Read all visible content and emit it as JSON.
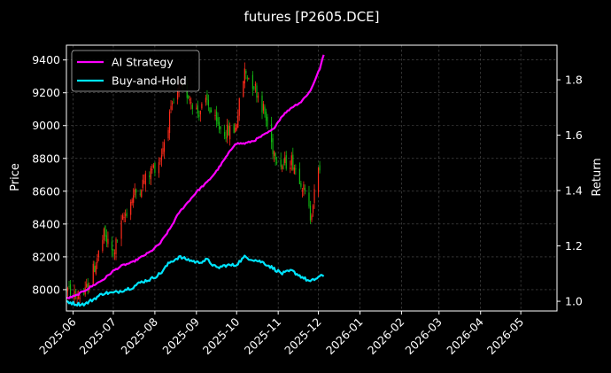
{
  "chart_data": {
    "type": "line",
    "title": "futures [P2605.DCE]",
    "ylabel_left": "Price",
    "ylabel_right": "Return",
    "grid": true,
    "legend_placement": "top-left",
    "colors": {
      "background": "#000000",
      "ai_strategy": "#ff00ff",
      "buy_and_hold": "#00e5ff",
      "candle_up": "#ff2a1a",
      "candle_down": "#11b811",
      "grid": "#555555"
    },
    "x_ticks": [
      "2025-06",
      "2025-07",
      "2025-08",
      "2025-09",
      "2025-10",
      "2025-11",
      "2025-12",
      "2026-01",
      "2026-02",
      "2026-03",
      "2026-04",
      "2026-05"
    ],
    "y_left_ticks": [
      8000,
      8200,
      8400,
      8600,
      8800,
      9000,
      9200,
      9400
    ],
    "y_left_range": [
      7870,
      9490
    ],
    "y_right_ticks": [
      1.0,
      1.2,
      1.4,
      1.6,
      1.8
    ],
    "y_right_range": [
      0.965,
      1.925
    ],
    "x_range": [
      "2025-05-27",
      "2026-05-28"
    ],
    "price_candles": {
      "dates": [
        "2025-05-27",
        "2025-06-03",
        "2025-06-10",
        "2025-06-17",
        "2025-06-24",
        "2025-07-01",
        "2025-07-08",
        "2025-07-15",
        "2025-07-22",
        "2025-07-29",
        "2025-08-05",
        "2025-08-12",
        "2025-08-19",
        "2025-08-26",
        "2025-09-02",
        "2025-09-09",
        "2025-09-16",
        "2025-09-23",
        "2025-09-30",
        "2025-10-07",
        "2025-10-14",
        "2025-10-21",
        "2025-10-28",
        "2025-11-04",
        "2025-11-11",
        "2025-11-18",
        "2025-11-25",
        "2025-12-02"
      ],
      "close": [
        8000,
        7960,
        7980,
        8140,
        8330,
        8220,
        8420,
        8560,
        8640,
        8720,
        8800,
        9050,
        9230,
        9190,
        9080,
        9140,
        9000,
        8960,
        8980,
        9330,
        9250,
        9100,
        8860,
        8760,
        8790,
        8670,
        8450,
        8760
      ]
    },
    "series": [
      {
        "name": "AI Strategy",
        "axis": "right",
        "x": [
          "2025-05-27",
          "2025-06-03",
          "2025-06-10",
          "2025-06-17",
          "2025-06-24",
          "2025-07-01",
          "2025-07-08",
          "2025-07-15",
          "2025-07-22",
          "2025-07-29",
          "2025-08-05",
          "2025-08-12",
          "2025-08-19",
          "2025-08-26",
          "2025-09-02",
          "2025-09-09",
          "2025-09-16",
          "2025-09-23",
          "2025-09-30",
          "2025-10-07",
          "2025-10-14",
          "2025-10-21",
          "2025-10-28",
          "2025-11-04",
          "2025-11-11",
          "2025-11-18",
          "2025-11-25",
          "2025-12-02",
          "2025-12-05"
        ],
        "values": [
          1.01,
          1.02,
          1.04,
          1.06,
          1.08,
          1.11,
          1.13,
          1.14,
          1.16,
          1.18,
          1.21,
          1.26,
          1.32,
          1.36,
          1.4,
          1.43,
          1.47,
          1.52,
          1.57,
          1.57,
          1.58,
          1.6,
          1.62,
          1.67,
          1.7,
          1.72,
          1.76,
          1.84,
          1.89
        ]
      },
      {
        "name": "Buy-and-Hold",
        "axis": "right",
        "x": [
          "2025-05-27",
          "2025-06-03",
          "2025-06-10",
          "2025-06-17",
          "2025-06-24",
          "2025-07-01",
          "2025-07-08",
          "2025-07-15",
          "2025-07-22",
          "2025-07-29",
          "2025-08-05",
          "2025-08-12",
          "2025-08-19",
          "2025-08-26",
          "2025-09-02",
          "2025-09-09",
          "2025-09-16",
          "2025-09-23",
          "2025-09-30",
          "2025-10-07",
          "2025-10-14",
          "2025-10-21",
          "2025-10-28",
          "2025-11-04",
          "2025-11-11",
          "2025-11-18",
          "2025-11-25",
          "2025-12-02",
          "2025-12-05"
        ],
        "values": [
          1.0,
          0.99,
          0.99,
          1.01,
          1.03,
          1.03,
          1.04,
          1.05,
          1.07,
          1.08,
          1.1,
          1.14,
          1.16,
          1.15,
          1.14,
          1.15,
          1.12,
          1.13,
          1.13,
          1.16,
          1.15,
          1.14,
          1.12,
          1.1,
          1.11,
          1.09,
          1.07,
          1.09,
          1.09
        ]
      }
    ]
  }
}
